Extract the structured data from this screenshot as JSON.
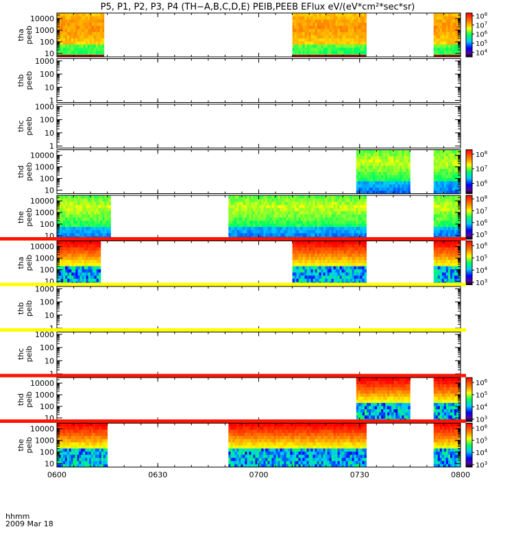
{
  "chart_data": {
    "type": "heatmap",
    "title": "P5, P1, P2, P3, P4 (TH−A,B,C,D,E) PEIB,PEEB EFlux eV/(eV*cm²*sec*sr)",
    "xlabel": "hhmm",
    "date_label": "2009 Mar 18",
    "x_range": [
      "0600",
      "0800"
    ],
    "x_ticks": [
      "0600",
      "0630",
      "0700",
      "0730",
      "0800"
    ],
    "panels": [
      {
        "name": "tha peeb",
        "ylabel": [
          "tha",
          "peeb"
        ],
        "yticks": [
          "10",
          "100",
          "1000",
          "10000"
        ],
        "ylog": true,
        "ylim": [
          5,
          30000
        ],
        "colorbar": {
          "min_exp": 3.5,
          "max_exp": 8.3,
          "tick_exps": [
            4,
            5,
            6,
            7,
            8
          ]
        },
        "coverage": [
          [
            "0600",
            "0614"
          ],
          [
            "0710",
            "0732"
          ],
          [
            "0752",
            "0800"
          ]
        ],
        "level": "high",
        "top_line": false,
        "pattern": "electron"
      },
      {
        "name": "thb peeb",
        "ylabel": [
          "thb",
          "peeb"
        ],
        "yticks": [
          "1",
          "10",
          "100",
          "1000"
        ],
        "ylog": true,
        "ylim": [
          0.7,
          1500
        ],
        "colorbar": null,
        "coverage": [],
        "top_line": false
      },
      {
        "name": "thc peeb",
        "ylabel": [
          "thc",
          "peeb"
        ],
        "yticks": [
          "1",
          "10",
          "100",
          "1000"
        ],
        "ylog": true,
        "ylim": [
          0.7,
          1500
        ],
        "colorbar": null,
        "coverage": [],
        "top_line": false
      },
      {
        "name": "thd peeb",
        "ylabel": [
          "thd",
          "peeb"
        ],
        "yticks": [
          "10",
          "100",
          "1000",
          "10000"
        ],
        "ylog": true,
        "ylim": [
          5,
          30000
        ],
        "colorbar": {
          "min_exp": 5.3,
          "max_exp": 8.3,
          "tick_exps": [
            6,
            7,
            8
          ]
        },
        "coverage": [
          [
            "0729",
            "0745"
          ],
          [
            "0752",
            "0800"
          ]
        ],
        "level": "mid",
        "top_line": false,
        "pattern": "electron"
      },
      {
        "name": "the peeb",
        "ylabel": [
          "the",
          "peeb"
        ],
        "yticks": [
          "10",
          "100",
          "1000",
          "10000"
        ],
        "ylog": true,
        "ylim": [
          5,
          30000
        ],
        "colorbar": {
          "min_exp": 4.6,
          "max_exp": 8.3,
          "tick_exps": [
            5,
            6,
            7,
            8
          ]
        },
        "coverage": [
          [
            "0600",
            "0616"
          ],
          [
            "0651",
            "0732"
          ],
          [
            "0752",
            "0800"
          ]
        ],
        "level": "mid",
        "top_line": false,
        "pattern": "electron"
      },
      {
        "name": "tha peib",
        "ylabel": [
          "tha",
          "peib"
        ],
        "yticks": [
          "10",
          "100",
          "1000",
          "10000"
        ],
        "ylog": true,
        "ylim": [
          5,
          30000
        ],
        "colorbar": {
          "min_exp": 2.8,
          "max_exp": 6.4,
          "tick_exps": [
            3,
            4,
            5,
            6
          ]
        },
        "coverage": [
          [
            "0600",
            "0613"
          ],
          [
            "0710",
            "0732"
          ],
          [
            "0752",
            "0800"
          ]
        ],
        "level": "high",
        "top_line": true,
        "top_line_color": "#ff1400",
        "pattern": "ion"
      },
      {
        "name": "thb peib",
        "ylabel": [
          "thb",
          "peib"
        ],
        "yticks": [
          "1",
          "10",
          "100",
          "1000"
        ],
        "ylog": true,
        "ylim": [
          0.7,
          1500
        ],
        "colorbar": null,
        "coverage": [],
        "top_line": true,
        "top_line_color": "#ffff00"
      },
      {
        "name": "thc peib",
        "ylabel": [
          "thc",
          "peib"
        ],
        "yticks": [
          "1",
          "10",
          "100",
          "1000"
        ],
        "ylog": true,
        "ylim": [
          0.7,
          1500
        ],
        "colorbar": null,
        "coverage": [],
        "top_line": true,
        "top_line_color": "#ffff00"
      },
      {
        "name": "thd peib",
        "ylabel": [
          "thd",
          "peib"
        ],
        "yticks": [
          "10",
          "100",
          "1000",
          "10000"
        ],
        "ylog": true,
        "ylim": [
          5,
          30000
        ],
        "colorbar": {
          "min_exp": 2.8,
          "max_exp": 6.4,
          "tick_exps": [
            3,
            4,
            5,
            6
          ]
        },
        "coverage": [
          [
            "0729",
            "0745"
          ],
          [
            "0752",
            "0800"
          ]
        ],
        "level": "high",
        "top_line": true,
        "top_line_color": "#ff1400",
        "pattern": "ion"
      },
      {
        "name": "the peib",
        "ylabel": [
          "the",
          "peib"
        ],
        "yticks": [
          "10",
          "100",
          "1000",
          "10000"
        ],
        "ylog": true,
        "ylim": [
          5,
          30000
        ],
        "colorbar": {
          "min_exp": 2.8,
          "max_exp": 6.4,
          "tick_exps": [
            3,
            4,
            5,
            6
          ]
        },
        "coverage": [
          [
            "0600",
            "0615"
          ],
          [
            "0651",
            "0732"
          ],
          [
            "0752",
            "0800"
          ]
        ],
        "level": "high",
        "top_line": true,
        "top_line_color": "#ff1400",
        "pattern": "ion"
      }
    ]
  }
}
